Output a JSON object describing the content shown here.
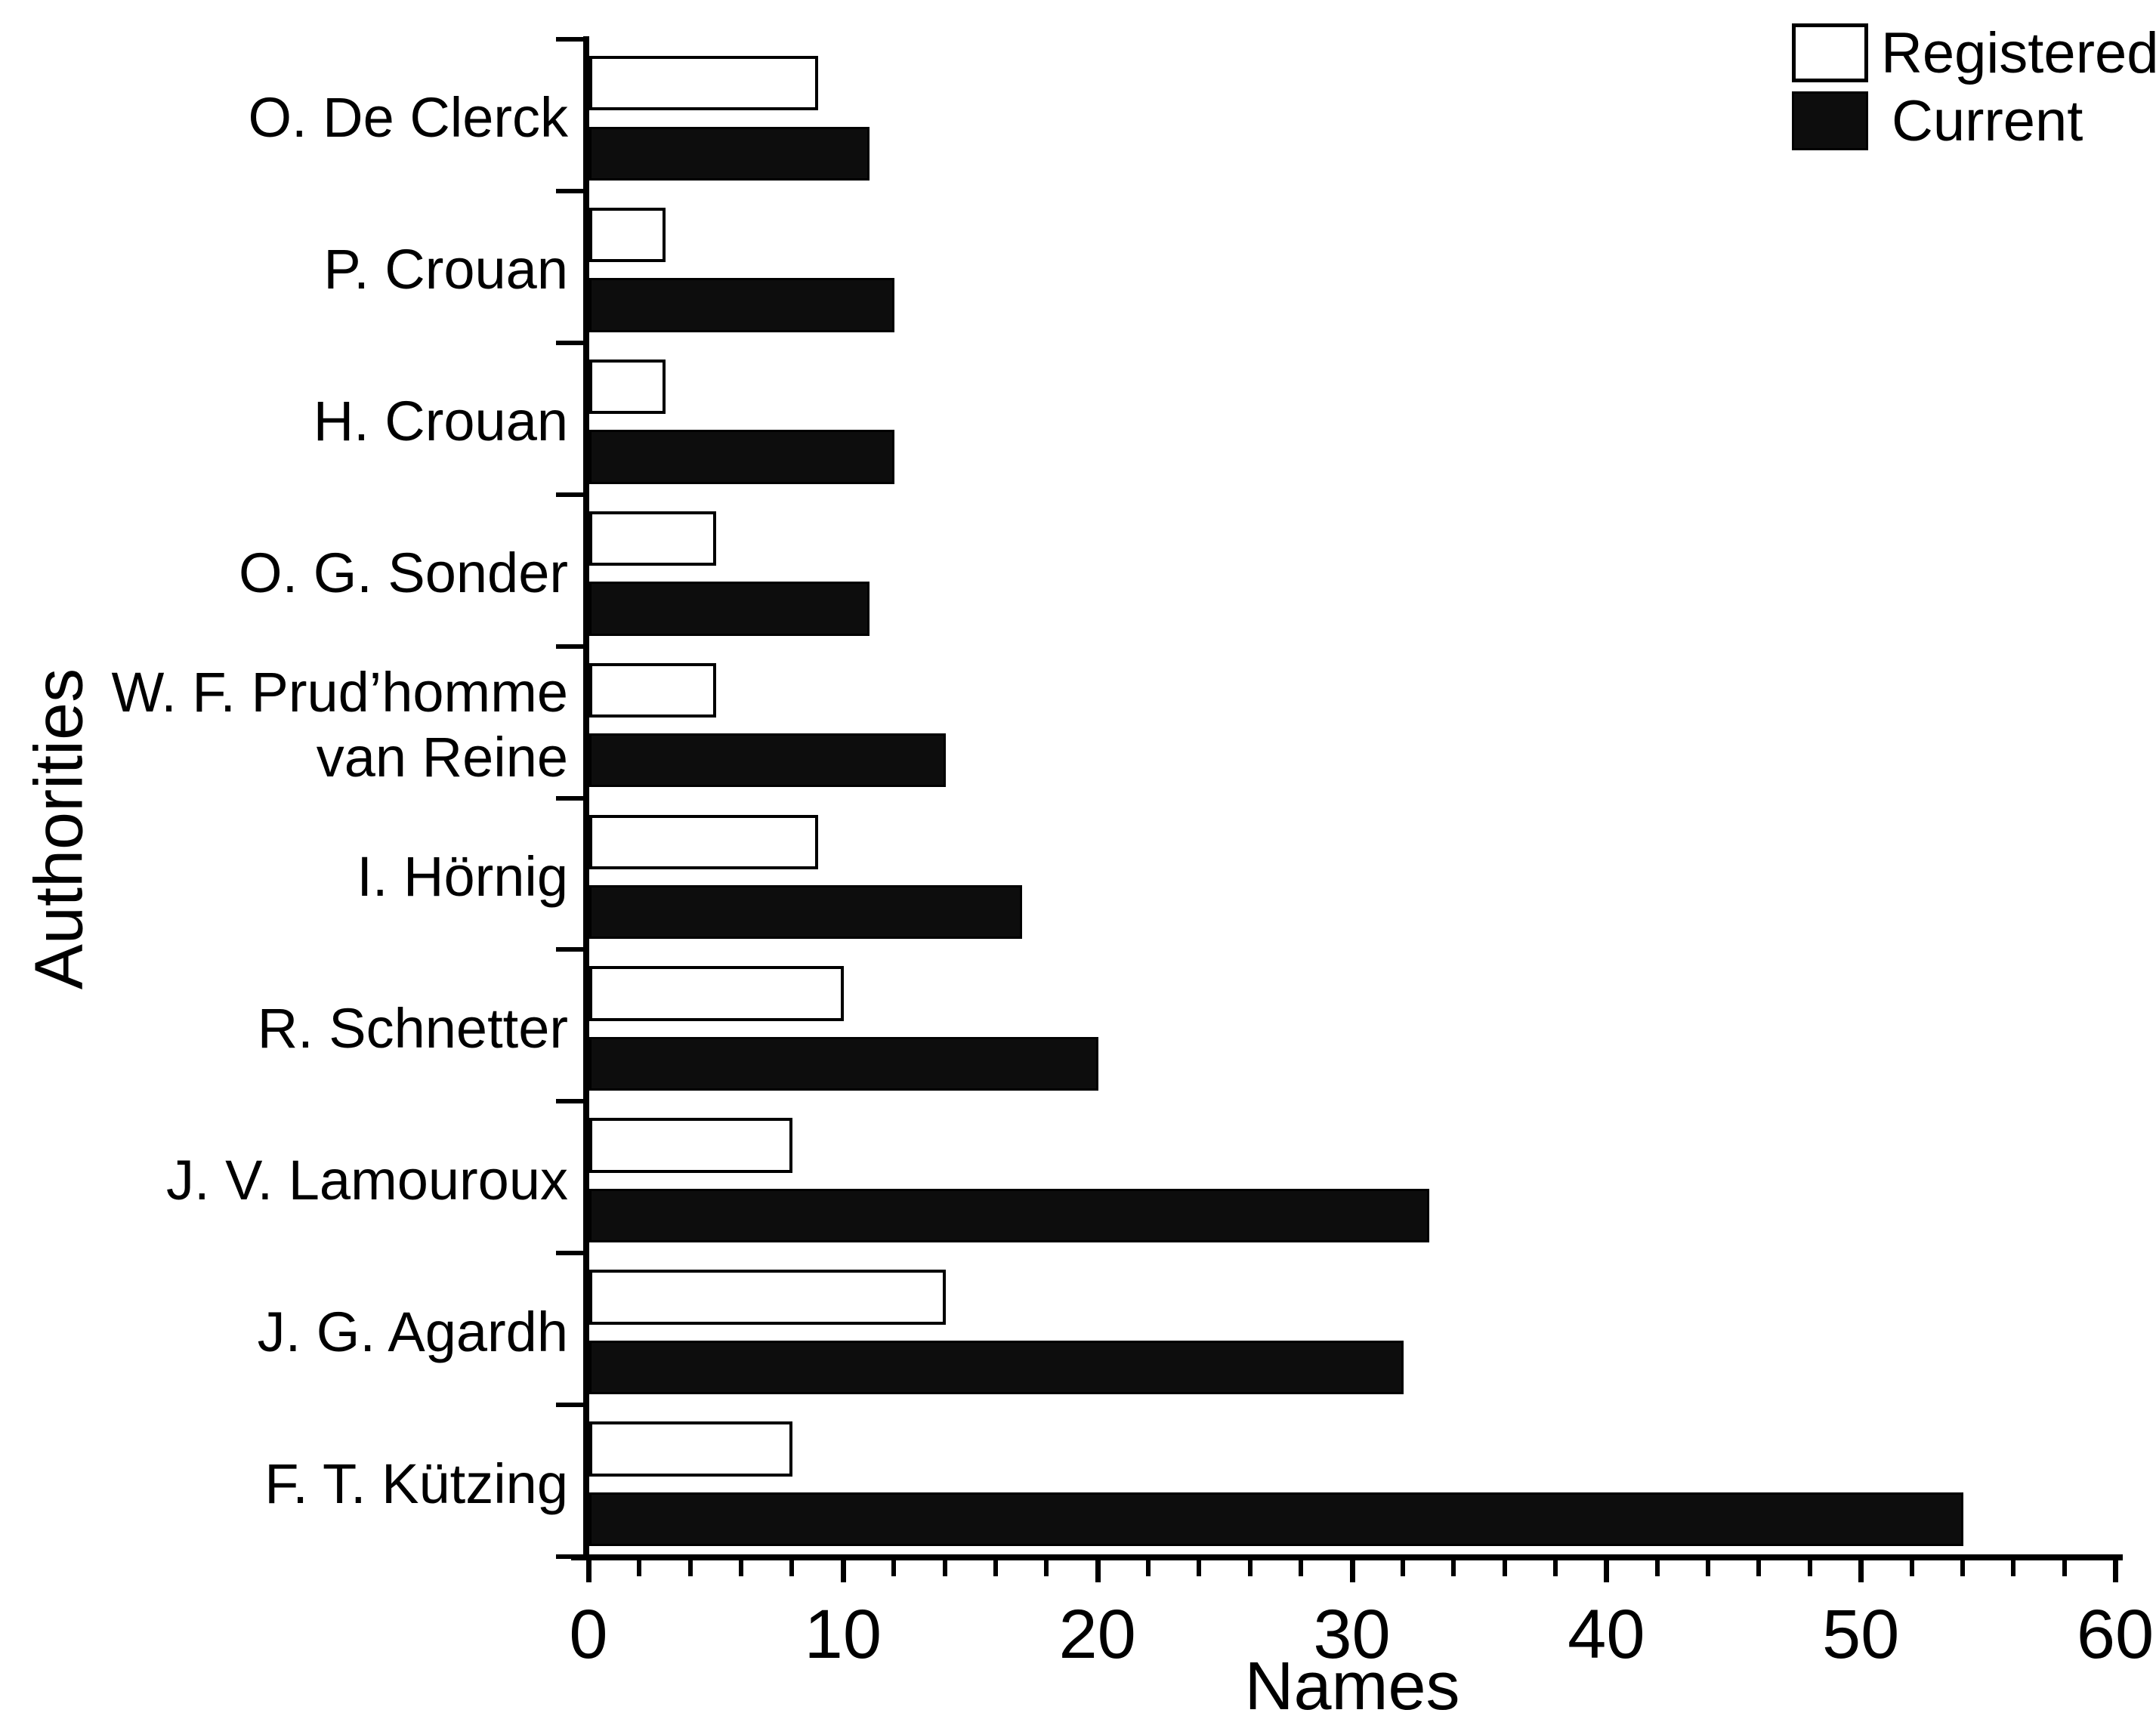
{
  "chart_data": {
    "type": "bar",
    "orientation": "horizontal",
    "title": "",
    "xlabel": "Names",
    "ylabel": "Authorities",
    "xlim": [
      0,
      60
    ],
    "xticks": [
      0,
      10,
      20,
      30,
      40,
      50,
      60
    ],
    "minor_tick_step": 2,
    "grid": false,
    "legend_position": "top-right",
    "categories": [
      "O. De Clerck",
      "P. Crouan",
      "H. Crouan",
      "O. G. Sonder",
      "W. F. Prud'homme van Reine",
      "I. Hörnig",
      "R. Schnetter",
      "J. V. Lamouroux",
      "J. G. Agardh",
      "F. T. Kützing"
    ],
    "category_label_lines": [
      [
        "O. De Clerck"
      ],
      [
        "P. Crouan"
      ],
      [
        "H. Crouan"
      ],
      [
        "O. G. Sonder"
      ],
      [
        "W. F. Prud’homme",
        "van Reine"
      ],
      [
        "I. Hörnig"
      ],
      [
        "R. Schnetter"
      ],
      [
        "J. V. Lamouroux"
      ],
      [
        "J. G. Agardh"
      ],
      [
        "F. T. Kützing"
      ]
    ],
    "series": [
      {
        "name": "Registered",
        "fill": "#ffffff",
        "values": [
          9,
          3,
          3,
          5,
          5,
          9,
          10,
          8,
          14,
          8
        ]
      },
      {
        "name": "Current",
        "fill": "#0d0d0d",
        "values": [
          11,
          12,
          12,
          11,
          14,
          17,
          20,
          33,
          32,
          54
        ]
      }
    ]
  },
  "colors": {
    "foreground": "#000000",
    "background": "#ffffff"
  }
}
